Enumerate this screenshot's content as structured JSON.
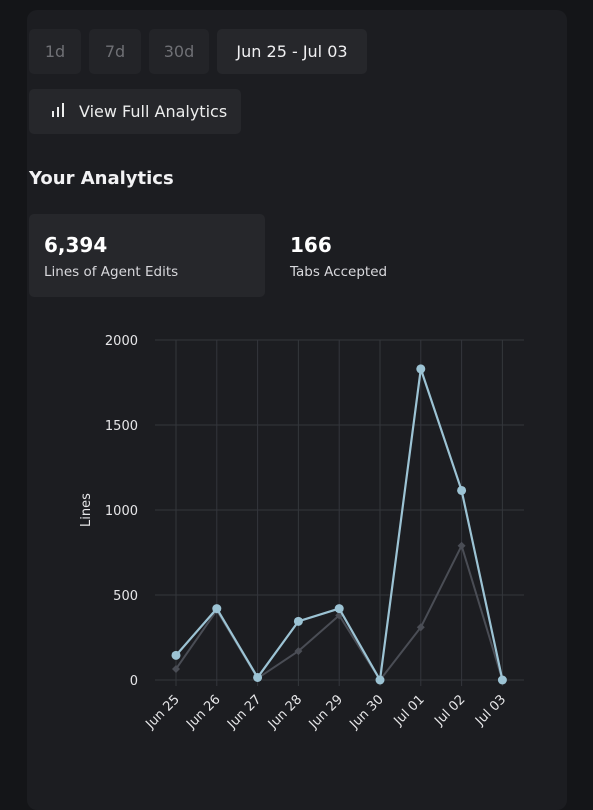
{
  "range_buttons": [
    {
      "label": "1d"
    },
    {
      "label": "7d"
    },
    {
      "label": "30d"
    },
    {
      "label": "Jun 25 - Jul 03"
    }
  ],
  "analytics_button": {
    "label": "View Full Analytics",
    "icon": "bar-chart-icon"
  },
  "section_title": "Your Analytics",
  "stats": [
    {
      "value": "6,394",
      "label": "Lines of Agent Edits"
    },
    {
      "value": "166",
      "label": "Tabs Accepted"
    }
  ],
  "colors": {
    "primary_series": "#9cc3d4",
    "secondary_series": "#4a4d55",
    "grid": "#34363c"
  },
  "chart_data": {
    "type": "line",
    "ylabel": "Lines",
    "ylim": [
      0,
      2000
    ],
    "yticks": [
      0,
      500,
      1000,
      1500,
      2000
    ],
    "x": [
      "Jun 25",
      "Jun 26",
      "Jun 27",
      "Jun 28",
      "Jun 29",
      "Jun 30",
      "Jul 01",
      "Jul 02",
      "Jul 03"
    ],
    "series": [
      {
        "values": [
          145,
          420,
          15,
          345,
          420,
          0,
          1830,
          1115,
          0
        ]
      },
      {
        "values": [
          65,
          410,
          10,
          170,
          380,
          0,
          310,
          790,
          0
        ]
      }
    ]
  }
}
